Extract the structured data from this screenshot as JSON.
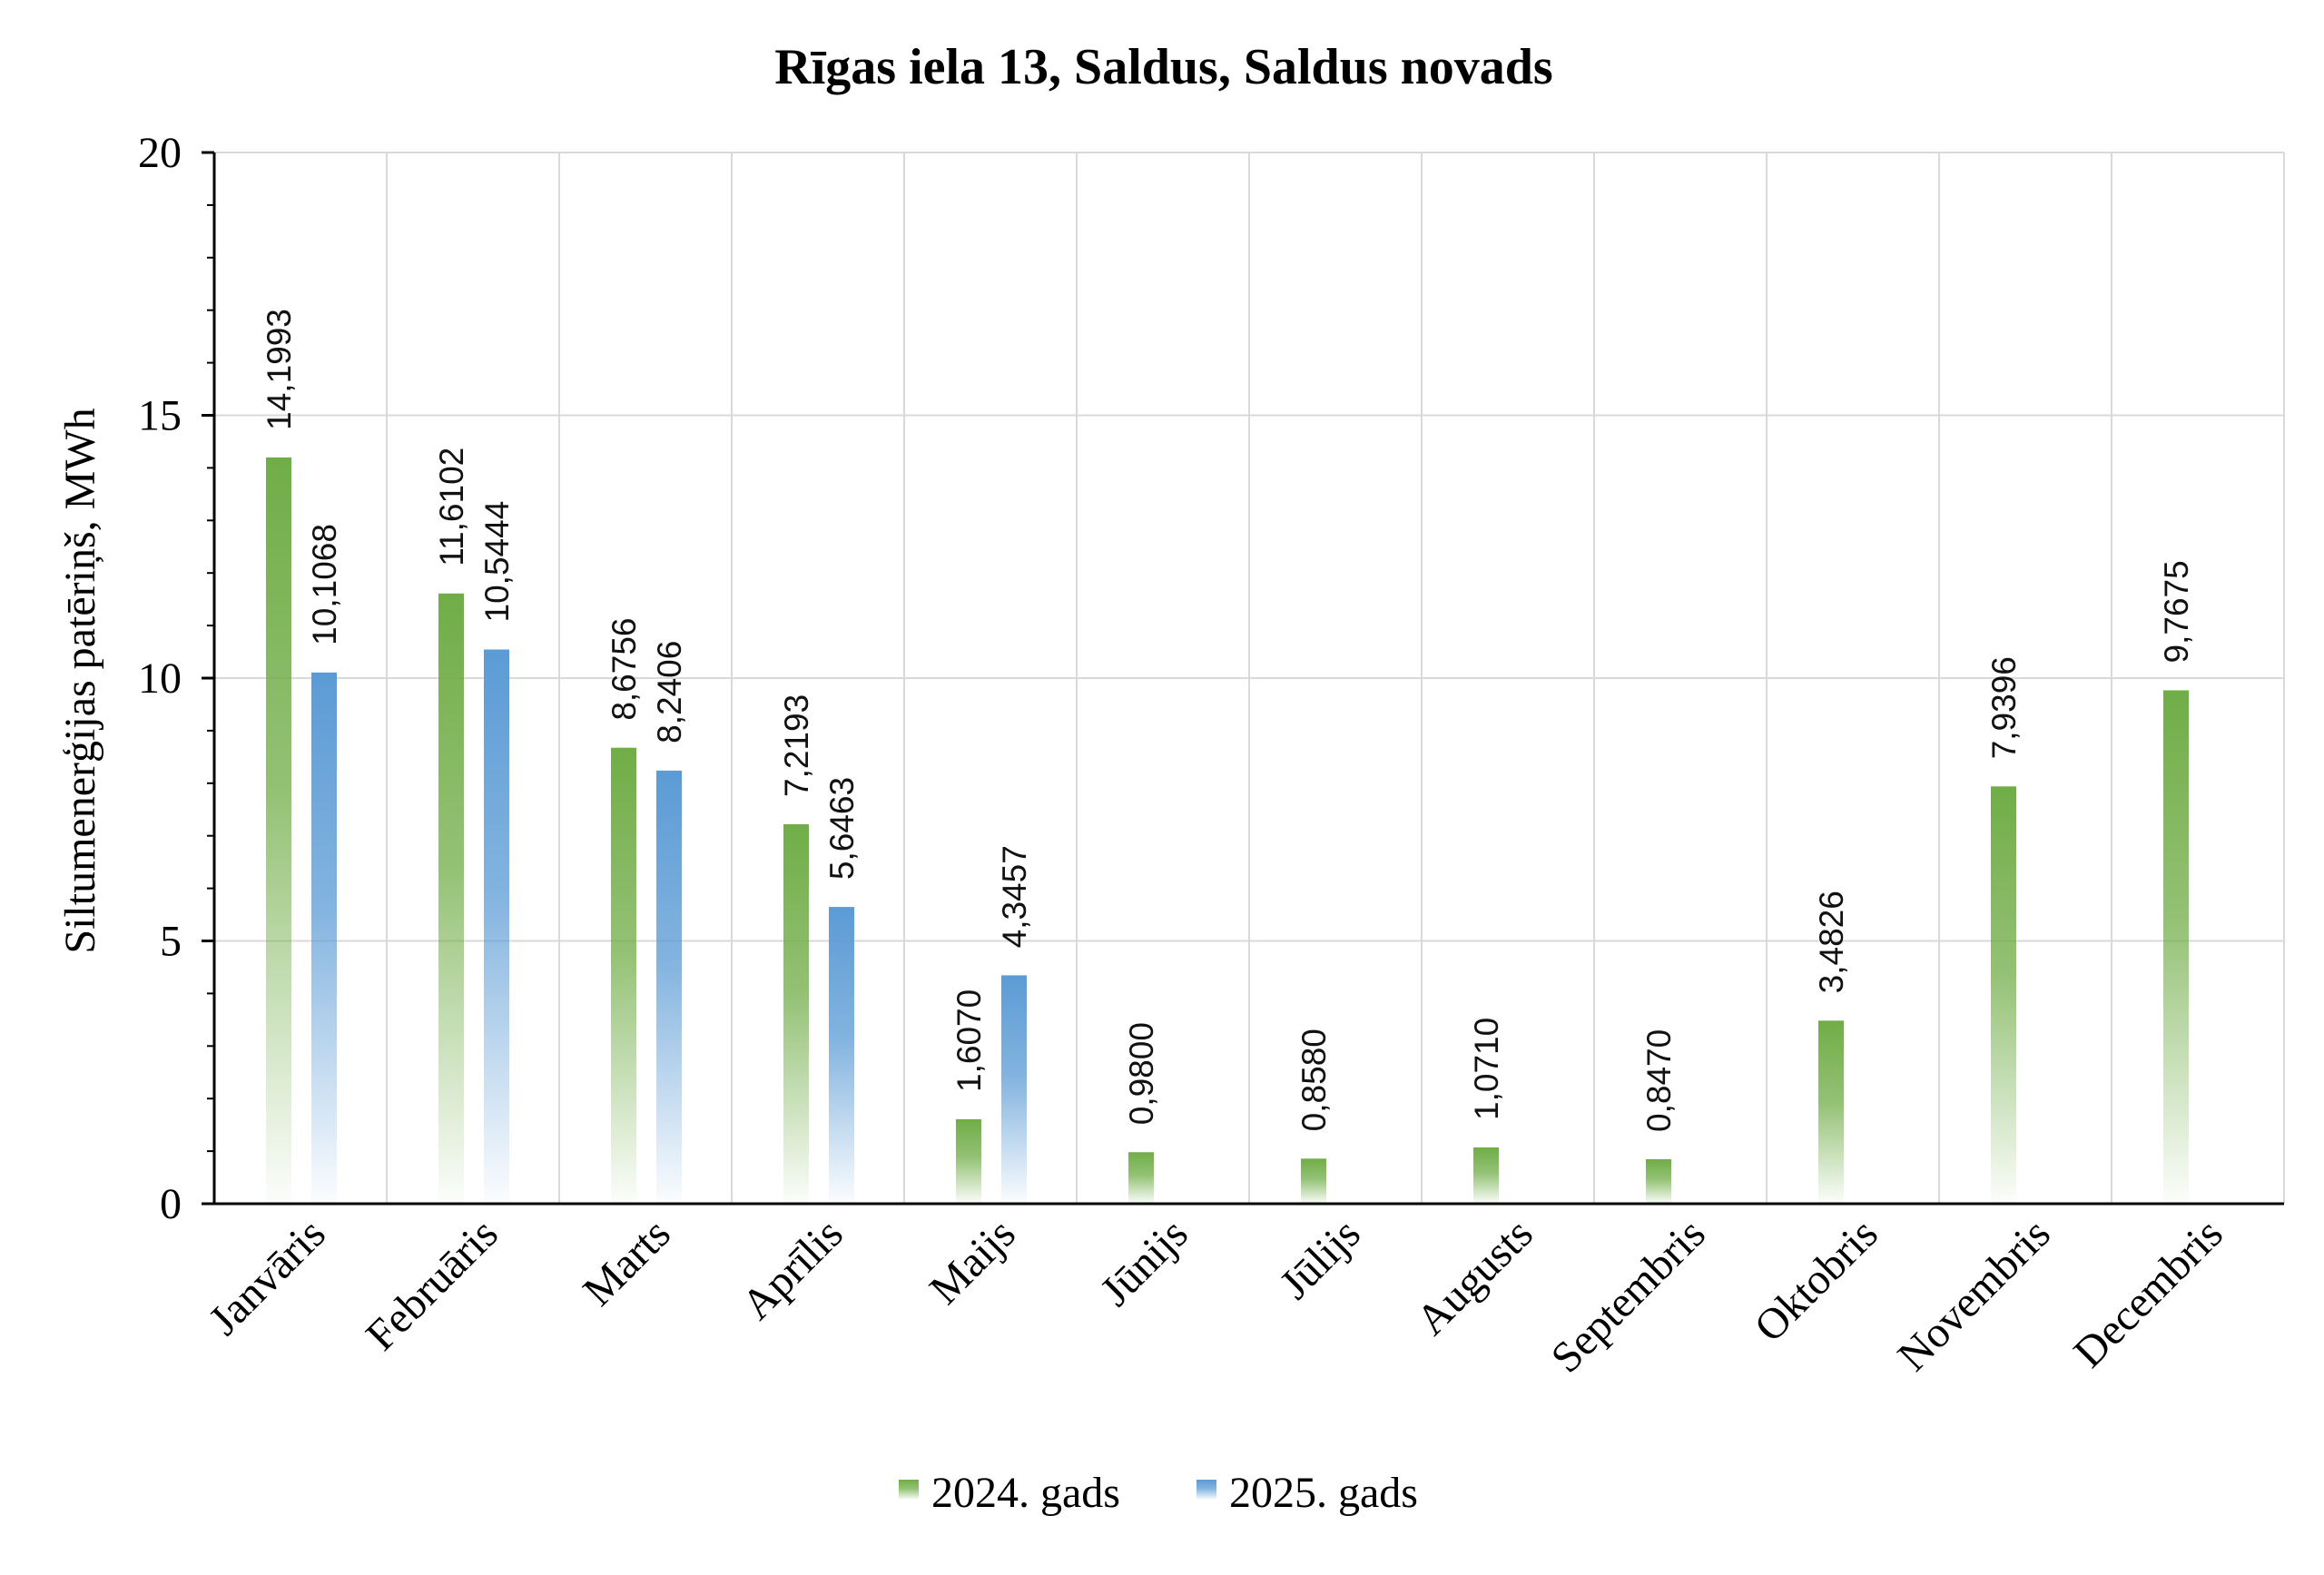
{
  "chart_data": {
    "type": "bar",
    "title": "Rīgas iela 13, Saldus, Saldus novads",
    "ylabel": "Siltumenerģijas patēriņš, MWh",
    "xlabel": "",
    "ylim": [
      0,
      20
    ],
    "yticks": [
      "0",
      "5",
      "10",
      "15",
      "20"
    ],
    "grid": true,
    "legend_position": "bottom",
    "categories": [
      "Janvāris",
      "Februāris",
      "Marts",
      "Aprīlis",
      "Maijs",
      "Jūnijs",
      "Jūlijs",
      "Augusts",
      "Septembris",
      "Oktobris",
      "Novembris",
      "Decembris"
    ],
    "series": [
      {
        "name": "2024. gads",
        "color": "#70ad47",
        "values": [
          14.1993,
          11.6102,
          8.6756,
          7.2193,
          1.607,
          0.98,
          0.858,
          1.071,
          0.847,
          3.4826,
          7.9396,
          9.7675
        ],
        "labels": [
          "14,1993",
          "11,6102",
          "8,6756",
          "7,2193",
          "1,6070",
          "0,9800",
          "0,8580",
          "1,0710",
          "0,8470",
          "3,4826",
          "7,9396",
          "9,7675"
        ]
      },
      {
        "name": "2025. gads",
        "color": "#5b9bd5",
        "values": [
          10.1068,
          10.5444,
          8.2406,
          5.6463,
          4.3457,
          null,
          null,
          null,
          null,
          null,
          null,
          null
        ],
        "labels": [
          "10,1068",
          "10,5444",
          "8,2406",
          "5,6463",
          "4,3457",
          "",
          "",
          "",
          "",
          "",
          "",
          ""
        ]
      }
    ]
  }
}
